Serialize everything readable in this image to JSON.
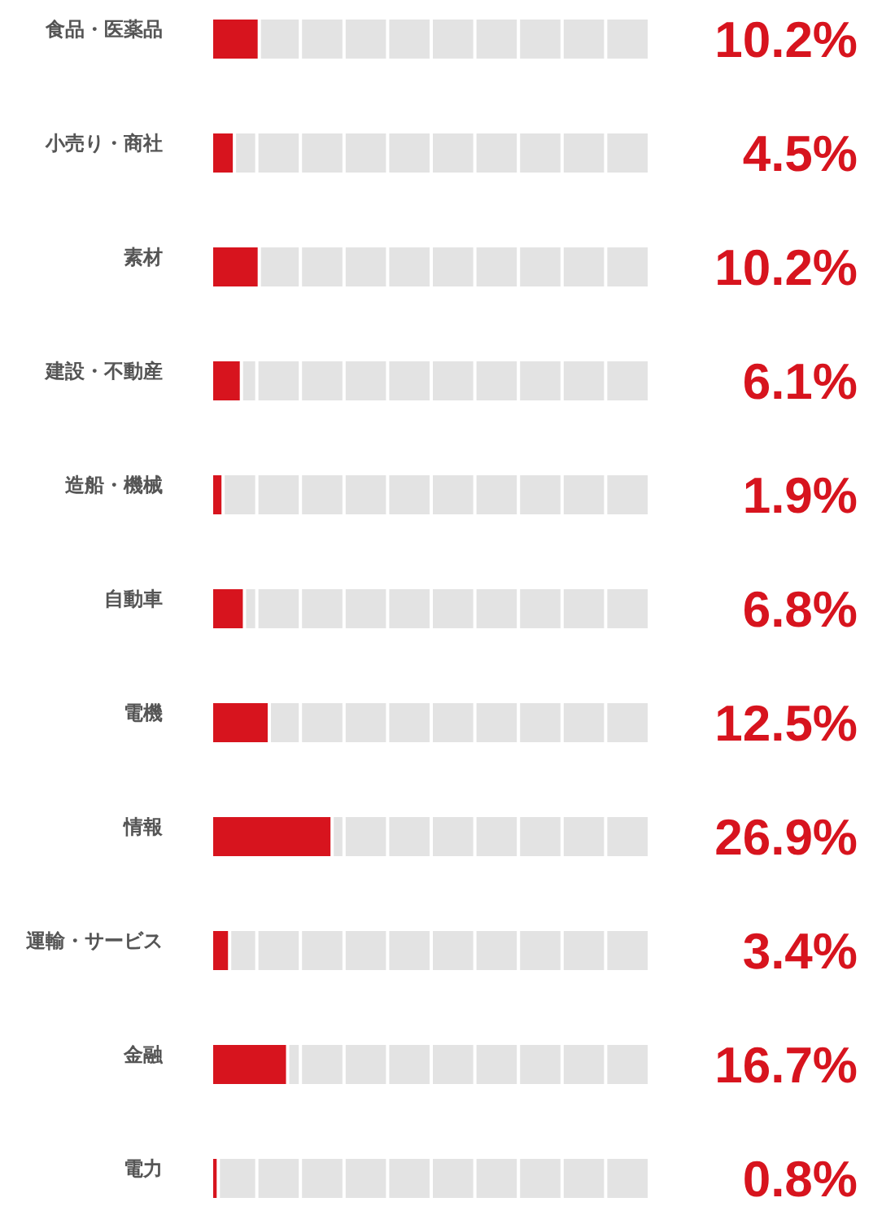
{
  "chart_data": {
    "type": "bar",
    "orientation": "horizontal",
    "categories": [
      "食品・医薬品",
      "小売り・商社",
      "素材",
      "建設・不動産",
      "造船・機械",
      "自動車",
      "電機",
      "情報",
      "運輸・サービス",
      "金融",
      "電力"
    ],
    "values": [
      10.2,
      4.5,
      10.2,
      6.1,
      1.9,
      6.8,
      12.5,
      26.9,
      3.4,
      16.7,
      0.8
    ],
    "value_labels": [
      "10.2%",
      "4.5%",
      "10.2%",
      "6.1%",
      "1.9%",
      "6.8%",
      "12.5%",
      "26.9%",
      "3.4%",
      "16.7%",
      "0.8%"
    ],
    "color": "#d7141e",
    "xlim": [
      0,
      100
    ],
    "tick_labels": "y"
  }
}
